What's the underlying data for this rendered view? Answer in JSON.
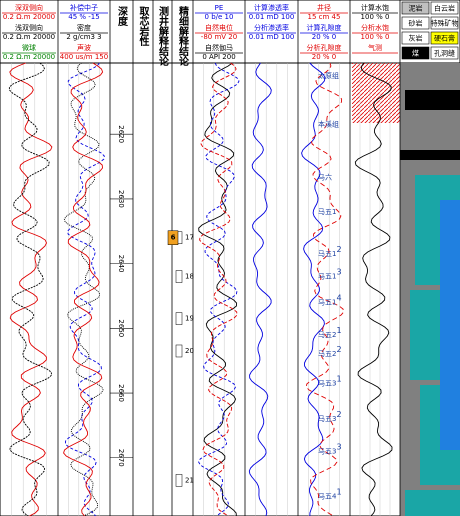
{
  "header": {
    "columns": [
      {
        "curves": [
          {
            "name": "深双侧向",
            "scale": "0.2  Ω.m  20000",
            "color": "#e00000"
          },
          {
            "name": "浅双侧向",
            "scale": "0.2  Ω.m  20000",
            "color": "#000000"
          },
          {
            "name": "微球",
            "scale": "0.2  Ω.m  20000",
            "color": "#008000"
          }
        ]
      },
      {
        "curves": [
          {
            "name": "补偿中子",
            "scale": "45   %   -15",
            "color": "#0000e0"
          },
          {
            "name": "密度",
            "scale": "2  g/cm3  3",
            "color": "#000000"
          },
          {
            "name": "声波",
            "scale": "400  us/m  150",
            "color": "#e00000"
          }
        ]
      },
      {
        "title": "深度"
      },
      {
        "title": "取芯岩性"
      },
      {
        "title": "测井解释结论"
      },
      {
        "title": "精细解释结论"
      },
      {
        "curves": [
          {
            "name": "PE",
            "scale": "0   b/e   10",
            "color": "#0000e0"
          },
          {
            "name": "自然电位",
            "scale": "-80  mV  20",
            "color": "#e00000"
          },
          {
            "name": "自然伽马",
            "scale": "0   API   200",
            "color": "#000000"
          }
        ]
      },
      {
        "curves": [
          {
            "name": "计算渗透率",
            "scale": "0.01  mD  100",
            "color": "#0000e0"
          },
          {
            "name": "分析渗透率",
            "scale": "0.01  mD  100",
            "color": "#0000e0"
          }
        ]
      },
      {
        "curves": [
          {
            "name": "井径",
            "scale": "15   cm   45",
            "color": "#e00000"
          },
          {
            "name": "计算孔隙度",
            "scale": "20   %   0",
            "color": "#0000e0"
          },
          {
            "name": "分析孔隙度",
            "scale": "20   %   0",
            "color": "#e00000"
          }
        ]
      },
      {
        "curves": [
          {
            "name": "计算水饱",
            "scale": "100   %   0",
            "color": "#000000"
          },
          {
            "name": "分析水饱",
            "scale": "100   %   0",
            "color": "#e00000"
          },
          {
            "name": "气测",
            "scale": "",
            "color": "#e00000"
          }
        ]
      }
    ],
    "legend": [
      "泥岩",
      "白云岩",
      "砂岩",
      "特殊矿物",
      "灰岩",
      "硬石膏",
      "煤",
      "孔洞缝"
    ]
  },
  "depth": {
    "range": [
      2609,
      2679
    ],
    "ticks": [
      2620,
      2630,
      2640,
      2650,
      2660,
      2670
    ]
  },
  "layers": [
    {
      "main": "太原组",
      "sup": null,
      "depth": 2611
    },
    {
      "main": "本溪组",
      "sup": null,
      "depth": 2618.5
    },
    {
      "main": "马六",
      "sup": null,
      "depth": 2626.7
    },
    {
      "main": "马五1",
      "sup": null,
      "depth": 2632
    },
    {
      "main": "马五1",
      "sup": "2",
      "depth": 2638.5
    },
    {
      "main": "马五1",
      "sup": "3",
      "depth": 2642
    },
    {
      "main": "马五1",
      "sup": "4",
      "depth": 2646
    },
    {
      "main": "马五2",
      "sup": "1",
      "depth": 2651
    },
    {
      "main": "马五2",
      "sup": "2",
      "depth": 2654
    },
    {
      "main": "马五3",
      "sup": "1",
      "depth": 2658.5
    },
    {
      "main": "马五3",
      "sup": "2",
      "depth": 2664
    },
    {
      "main": "马五3",
      "sup": "3",
      "depth": 2669
    },
    {
      "main": "马五4",
      "sup": "1",
      "depth": 2676
    }
  ],
  "conclusions": [
    {
      "label": "17",
      "depth": 2636
    },
    {
      "label": "18",
      "depth": 2642
    },
    {
      "label": "19",
      "depth": 2648.5
    },
    {
      "label": "20",
      "depth": 2653.5
    },
    {
      "label": "21",
      "depth": 2673.5
    }
  ],
  "tests": [
    {
      "label": "6",
      "depth": 2636
    }
  ]
}
